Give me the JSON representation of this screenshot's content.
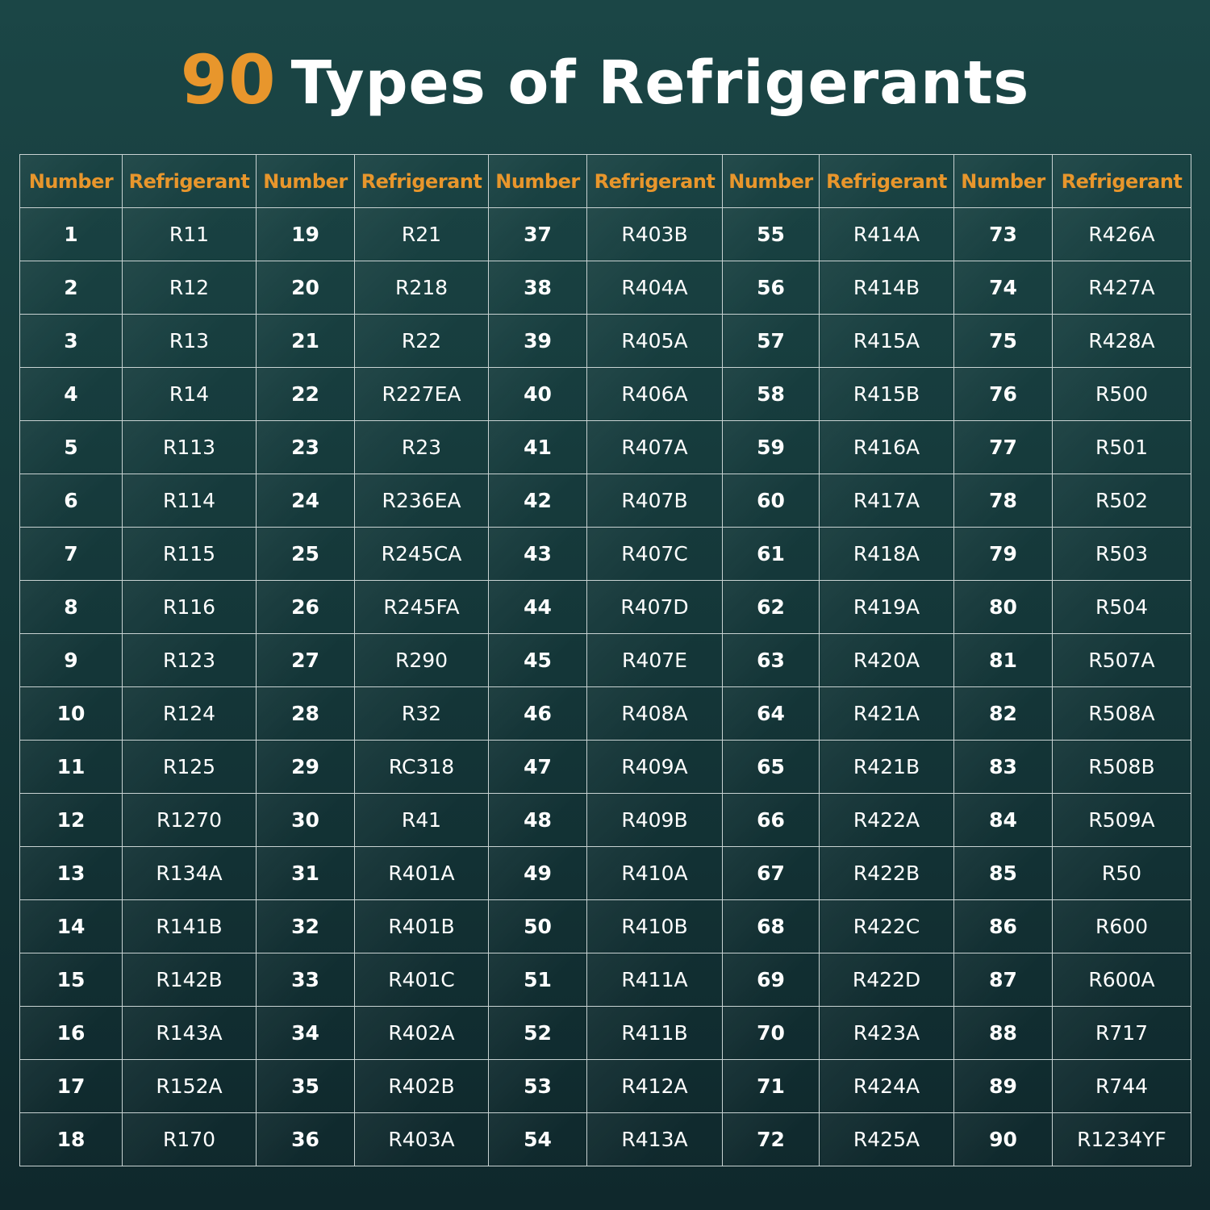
{
  "header": {
    "title_number": "90",
    "title_text": "Types of Refrigerants"
  },
  "table": {
    "headers": [
      "Number",
      "Refrigerant",
      "Number",
      "Refrigerant",
      "Number",
      "Refrigerant",
      "Number",
      "Refrigerant",
      "Number",
      "Refrigerant"
    ],
    "rows": [
      [
        1,
        "R11",
        19,
        "R21",
        37,
        "R403B",
        55,
        "R414A",
        73,
        "R426A"
      ],
      [
        2,
        "R12",
        20,
        "R218",
        38,
        "R404A",
        56,
        "R414B",
        74,
        "R427A"
      ],
      [
        3,
        "R13",
        21,
        "R22",
        39,
        "R405A",
        57,
        "R415A",
        75,
        "R428A"
      ],
      [
        4,
        "R14",
        22,
        "R227EA",
        40,
        "R406A",
        58,
        "R415B",
        76,
        "R500"
      ],
      [
        5,
        "R113",
        23,
        "R23",
        41,
        "R407A",
        59,
        "R416A",
        77,
        "R501"
      ],
      [
        6,
        "R114",
        24,
        "R236EA",
        42,
        "R407B",
        60,
        "R417A",
        78,
        "R502"
      ],
      [
        7,
        "R115",
        25,
        "R245CA",
        43,
        "R407C",
        61,
        "R418A",
        79,
        "R503"
      ],
      [
        8,
        "R116",
        26,
        "R245FA",
        44,
        "R407D",
        62,
        "R419A",
        80,
        "R504"
      ],
      [
        9,
        "R123",
        27,
        "R290",
        45,
        "R407E",
        63,
        "R420A",
        81,
        "R507A"
      ],
      [
        10,
        "R124",
        28,
        "R32",
        46,
        "R408A",
        64,
        "R421A",
        82,
        "R508A"
      ],
      [
        11,
        "R125",
        29,
        "RC318",
        47,
        "R409A",
        65,
        "R421B",
        83,
        "R508B"
      ],
      [
        12,
        "R1270",
        30,
        "R41",
        48,
        "R409B",
        66,
        "R422A",
        84,
        "R509A"
      ],
      [
        13,
        "R134A",
        31,
        "R401A",
        49,
        "R410A",
        67,
        "R422B",
        85,
        "R50"
      ],
      [
        14,
        "R141B",
        32,
        "R401B",
        50,
        "R410B",
        68,
        "R422C",
        86,
        "R600"
      ],
      [
        15,
        "R142B",
        33,
        "R401C",
        51,
        "R411A",
        69,
        "R422D",
        87,
        "R600A"
      ],
      [
        16,
        "R143A",
        34,
        "R402A",
        52,
        "R411B",
        70,
        "R423A",
        88,
        "R717"
      ],
      [
        17,
        "R152A",
        35,
        "R402B",
        53,
        "R412A",
        71,
        "R424A",
        89,
        "R744"
      ],
      [
        18,
        "R170",
        36,
        "R403A",
        54,
        "R413A",
        72,
        "R425A",
        90,
        "R1234YF"
      ]
    ]
  }
}
